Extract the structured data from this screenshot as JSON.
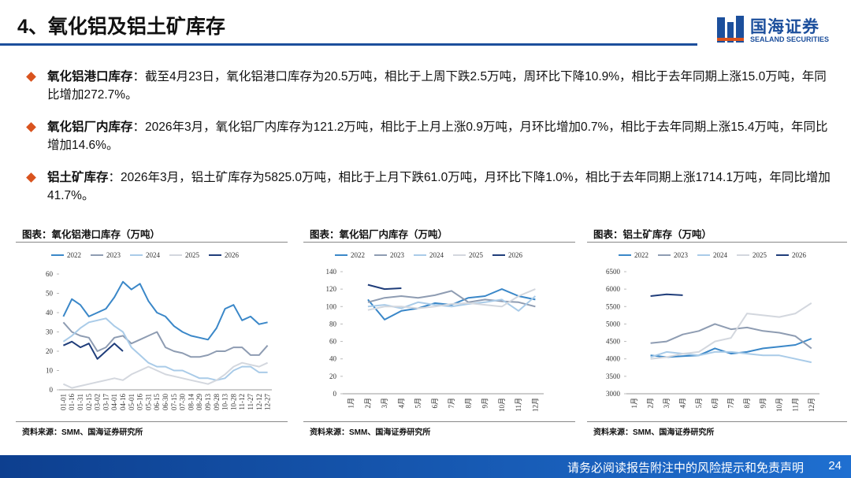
{
  "header": {
    "title": "4、氧化铝及铝土矿库存",
    "logo_cn": "国海证券",
    "logo_en": "SEALAND SECURITIES"
  },
  "bullets": [
    {
      "label": "氧化铝港口库存",
      "text": "：截至4月23日，氧化铝港口库存为20.5万吨，相比于上周下跌2.5万吨，周环比下降10.9%，相比于去年同期上涨15.0万吨，年同比增加272.7%。"
    },
    {
      "label": "氧化铝厂内库存",
      "text": "：2026年3月，氧化铝厂内库存为121.2万吨，相比于上月上涨0.9万吨，月环比增加0.7%，相比于去年同期上涨15.4万吨，年同比增加14.6%。"
    },
    {
      "label": "铝土矿库存",
      "text": "：2026年3月，铝土矿库存为5825.0万吨，相比于上月下跌61.0万吨，月环比下降1.0%，相比于去年同期上涨1714.1万吨，年同比增加41.7%。"
    }
  ],
  "chart_data": [
    {
      "type": "line",
      "title": "图表：氧化铝港口库存（万吨）",
      "source": "资料来源：SMM、国海证券研究所",
      "categories": [
        "01-01",
        "01-16",
        "01-31",
        "02-15",
        "03-02",
        "03-17",
        "04-01",
        "04-16",
        "05-01",
        "05-16",
        "05-31",
        "06-15",
        "06-30",
        "07-15",
        "07-30",
        "08-14",
        "08-29",
        "09-13",
        "09-28",
        "10-13",
        "10-28",
        "11-12",
        "11-27",
        "12-12",
        "12-27"
      ],
      "ylim": [
        0,
        60
      ],
      "yticks": [
        0,
        10,
        20,
        30,
        40,
        50,
        60
      ],
      "series": [
        {
          "name": "2022",
          "color": "#3a87c8",
          "values": [
            38,
            47,
            44,
            38,
            40,
            42,
            48,
            56,
            52,
            55,
            46,
            40,
            38,
            33,
            30,
            28,
            27,
            26,
            32,
            42,
            44,
            36,
            38,
            34,
            35
          ]
        },
        {
          "name": "2023",
          "color": "#8e9cb2",
          "values": [
            35,
            30,
            28,
            27,
            20,
            22,
            27,
            28,
            24,
            26,
            28,
            30,
            22,
            20,
            19,
            17,
            17,
            18,
            20,
            20,
            22,
            22,
            18,
            18,
            23
          ]
        },
        {
          "name": "2024",
          "color": "#a9cbe8",
          "values": [
            25,
            28,
            32,
            35,
            36,
            37,
            33,
            30,
            22,
            18,
            14,
            12,
            12,
            10,
            10,
            8,
            6,
            6,
            5,
            6,
            10,
            12,
            12,
            9,
            9
          ]
        },
        {
          "name": "2025",
          "color": "#d3d7de",
          "values": [
            3,
            1,
            2,
            3,
            4,
            5,
            6,
            5,
            8,
            10,
            12,
            10,
            8,
            7,
            6,
            5,
            4,
            3,
            5,
            8,
            12,
            14,
            13,
            12,
            14
          ]
        },
        {
          "name": "2026",
          "color": "#1f3d7a",
          "values": [
            23,
            25,
            22,
            24,
            16,
            20,
            24,
            20,
            null,
            null,
            null,
            null,
            null,
            null,
            null,
            null,
            null,
            null,
            null,
            null,
            null,
            null,
            null,
            null,
            null
          ]
        }
      ]
    },
    {
      "type": "line",
      "title": "图表：氧化铝厂内库存（万吨）",
      "source": "资料来源：SMM、国海证券研究所",
      "categories": [
        "1月",
        "2月",
        "3月",
        "4月",
        "5月",
        "6月",
        "7月",
        "8月",
        "9月",
        "10月",
        "11月",
        "12月"
      ],
      "ylim": [
        0,
        140
      ],
      "yticks": [
        0,
        20,
        40,
        60,
        80,
        100,
        120,
        140
      ],
      "series": [
        {
          "name": "2022",
          "color": "#3a87c8",
          "values": [
            null,
            108,
            85,
            95,
            98,
            104,
            102,
            110,
            112,
            120,
            112,
            108
          ]
        },
        {
          "name": "2023",
          "color": "#8e9cb2",
          "values": [
            null,
            105,
            110,
            112,
            110,
            113,
            118,
            105,
            108,
            106,
            105,
            100
          ]
        },
        {
          "name": "2024",
          "color": "#a9cbe8",
          "values": [
            null,
            100,
            102,
            98,
            105,
            102,
            100,
            103,
            105,
            108,
            95,
            112
          ]
        },
        {
          "name": "2025",
          "color": "#d3d7de",
          "values": [
            null,
            96,
            100,
            100,
            98,
            100,
            103,
            104,
            102,
            100,
            112,
            120
          ]
        },
        {
          "name": "2026",
          "color": "#1f3d7a",
          "values": [
            null,
            125,
            120,
            121,
            null,
            null,
            null,
            null,
            null,
            null,
            null,
            null
          ]
        }
      ]
    },
    {
      "type": "line",
      "title": "图表：铝土矿库存（万吨）",
      "source": "资料来源：SMM、国海证券研究所",
      "categories": [
        "1月",
        "2月",
        "3月",
        "4月",
        "5月",
        "6月",
        "7月",
        "8月",
        "9月",
        "10月",
        "11月",
        "12月"
      ],
      "ylim": [
        3000,
        6500
      ],
      "yticks": [
        3000,
        3500,
        4000,
        4500,
        5000,
        5500,
        6000,
        6500
      ],
      "series": [
        {
          "name": "2022",
          "color": "#3a87c8",
          "values": [
            null,
            4100,
            4050,
            4080,
            4100,
            4300,
            4150,
            4200,
            4300,
            4350,
            4400,
            4580
          ]
        },
        {
          "name": "2023",
          "color": "#8e9cb2",
          "values": [
            null,
            4450,
            4500,
            4700,
            4800,
            5000,
            4850,
            4900,
            4800,
            4750,
            4650,
            4300
          ]
        },
        {
          "name": "2024",
          "color": "#a9cbe8",
          "values": [
            null,
            4050,
            4200,
            4150,
            4100,
            4200,
            4200,
            4150,
            4100,
            4100,
            4000,
            3900
          ]
        },
        {
          "name": "2025",
          "color": "#d3d7de",
          "values": [
            null,
            4000,
            4050,
            4150,
            4200,
            4500,
            4600,
            5300,
            5250,
            5200,
            5300,
            5600
          ]
        },
        {
          "name": "2026",
          "color": "#1f3d7a",
          "values": [
            null,
            5800,
            5850,
            5825,
            null,
            null,
            null,
            null,
            null,
            null,
            null,
            null
          ]
        }
      ]
    }
  ],
  "footer": {
    "text": "请务必阅读报告附注中的风险提示和免责声明",
    "page": "24"
  }
}
